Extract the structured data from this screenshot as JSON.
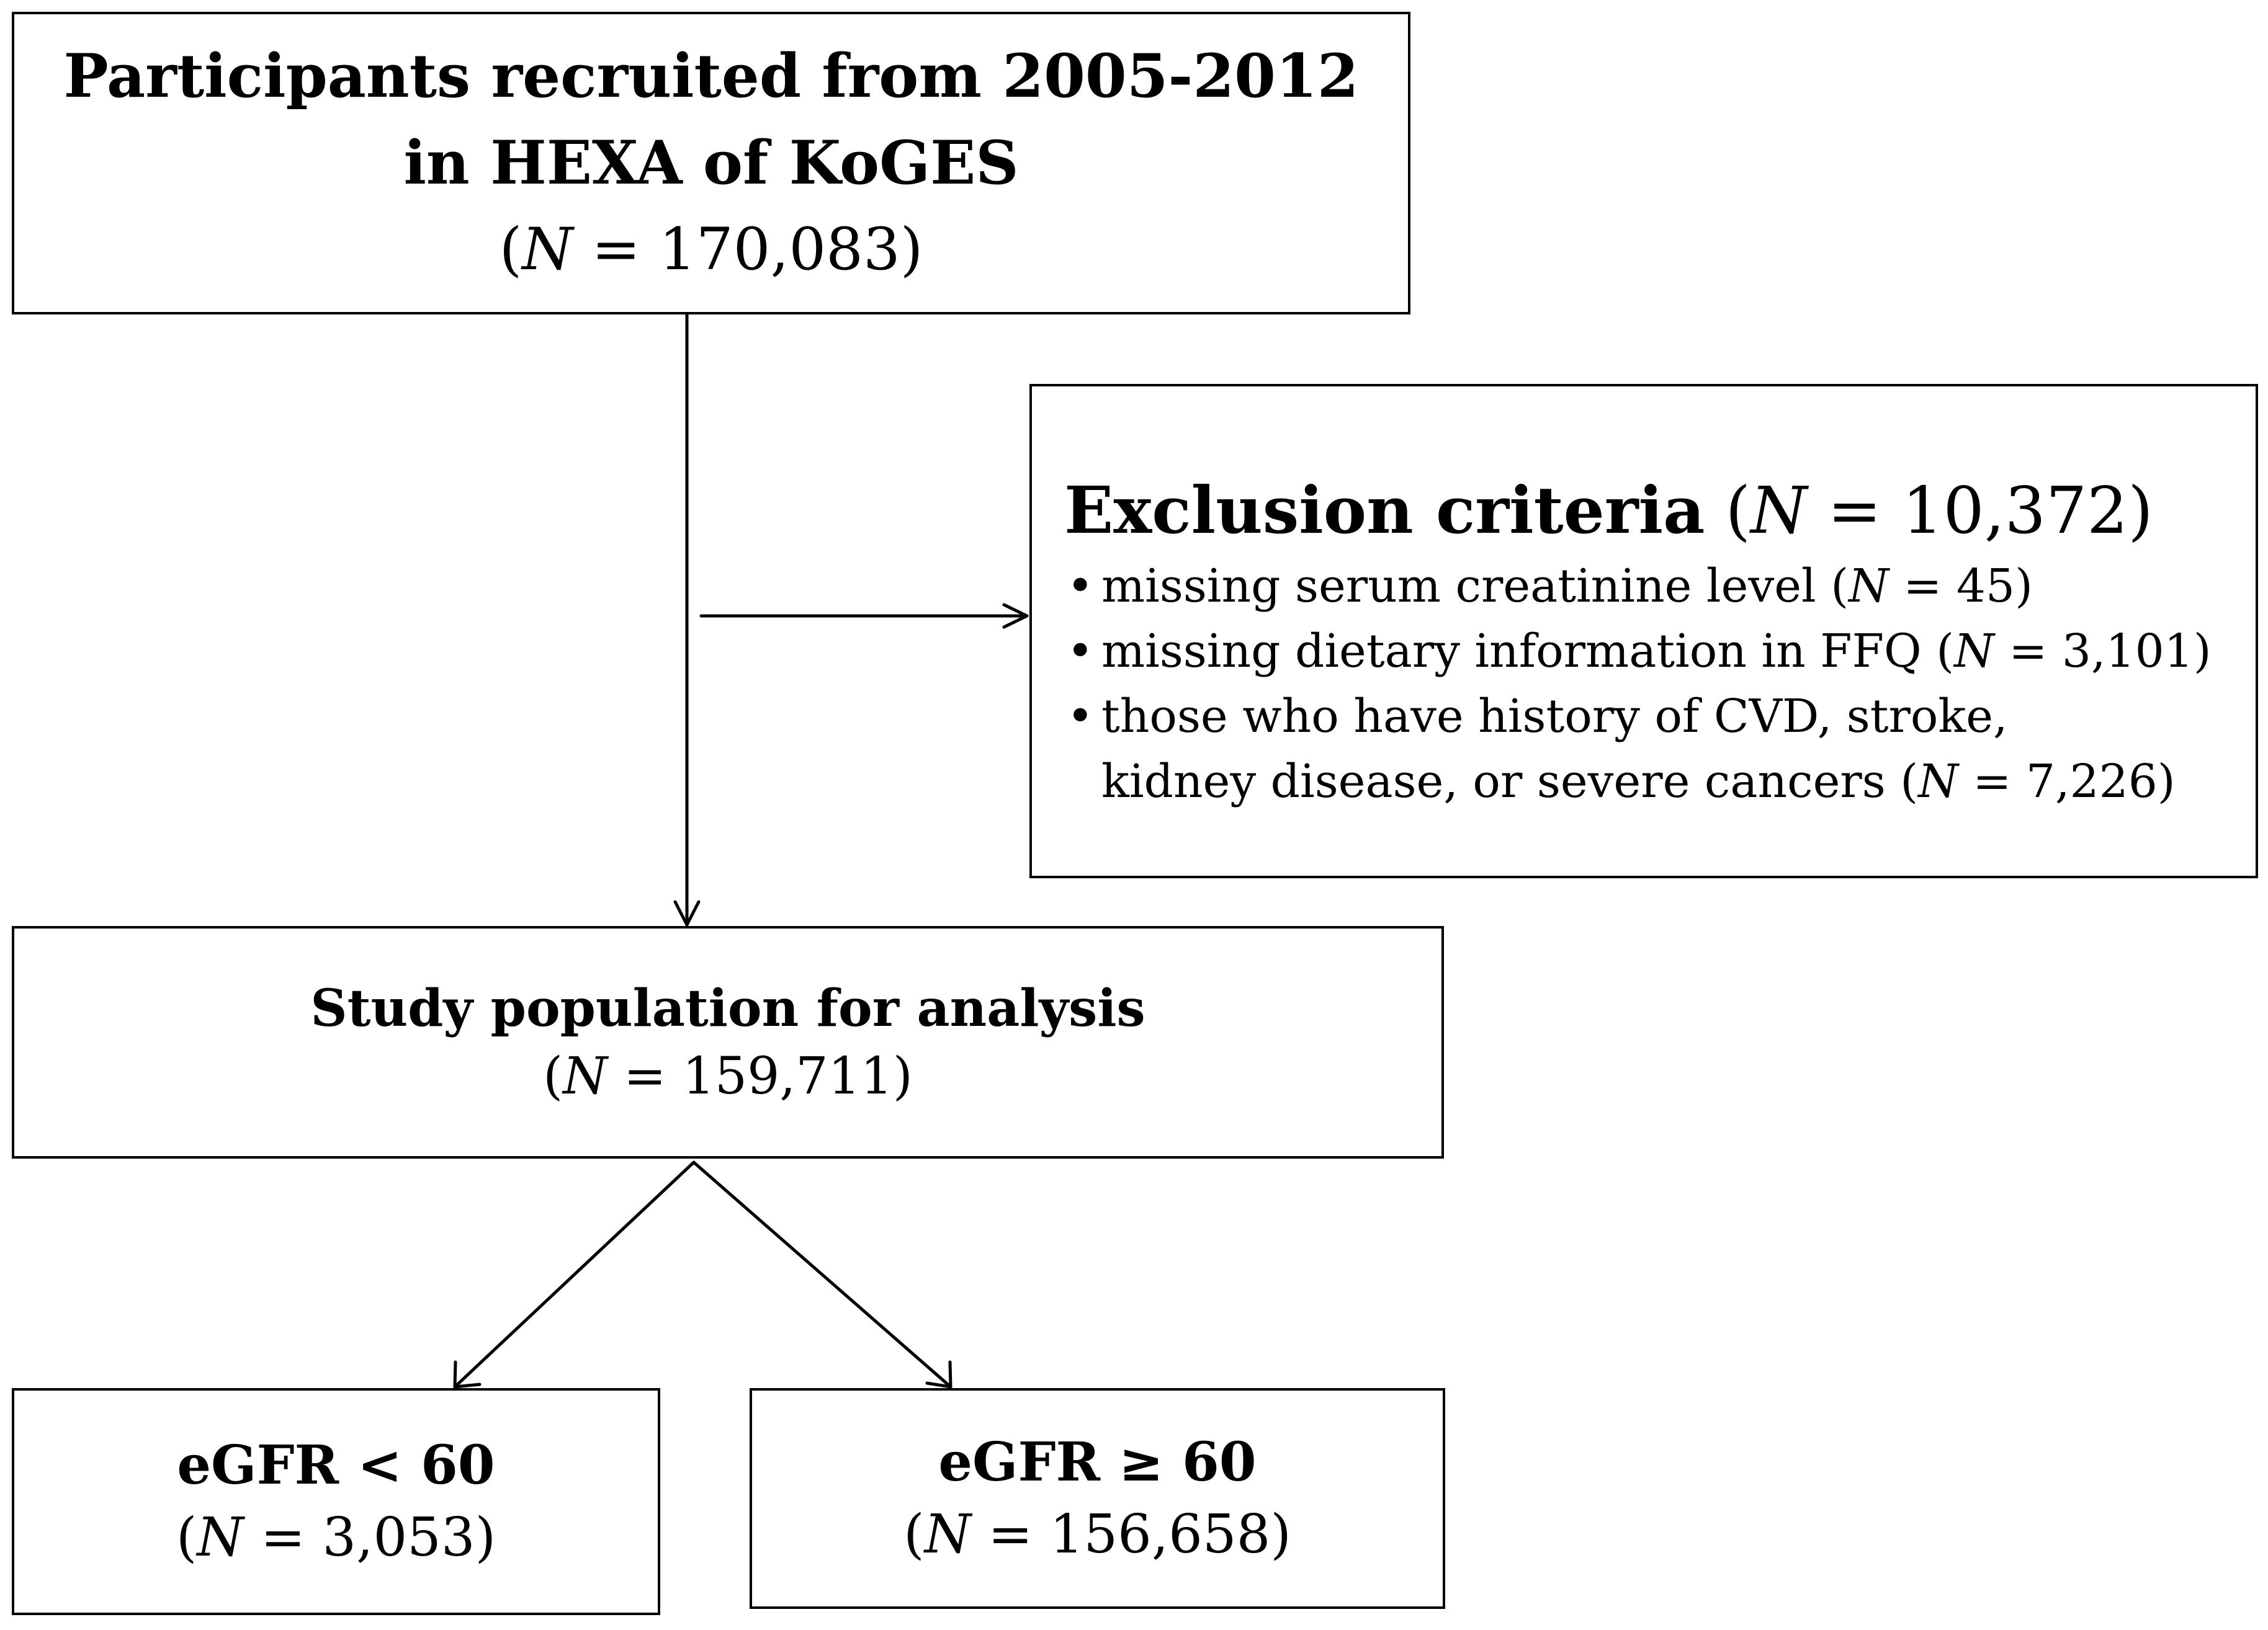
{
  "nodes": {
    "recruited": {
      "line1": "Participants recruited from 2005-2012",
      "line2": "in HEXA of KoGES",
      "count": "170,083"
    },
    "exclusion": {
      "title": "Exclusion criteria",
      "count": "10,372",
      "items": [
        {
          "text": "missing serum creatinine level",
          "count": "45"
        },
        {
          "text": "missing dietary information in FFQ",
          "count": "3,101"
        },
        {
          "text": "those who have history of CVD, stroke,",
          "text2": "kidney disease, or severe cancers",
          "count": "7,226"
        }
      ]
    },
    "study": {
      "title": "Study population for analysis",
      "count": "159,711"
    },
    "egfr_low": {
      "title": "eGFR < 60",
      "count": "3,053"
    },
    "egfr_high": {
      "title": "eGFR ≥ 60",
      "count": "156,658"
    }
  },
  "symbols": {
    "n": "N",
    "equals": " = ",
    "open": "(",
    "close": ")"
  }
}
